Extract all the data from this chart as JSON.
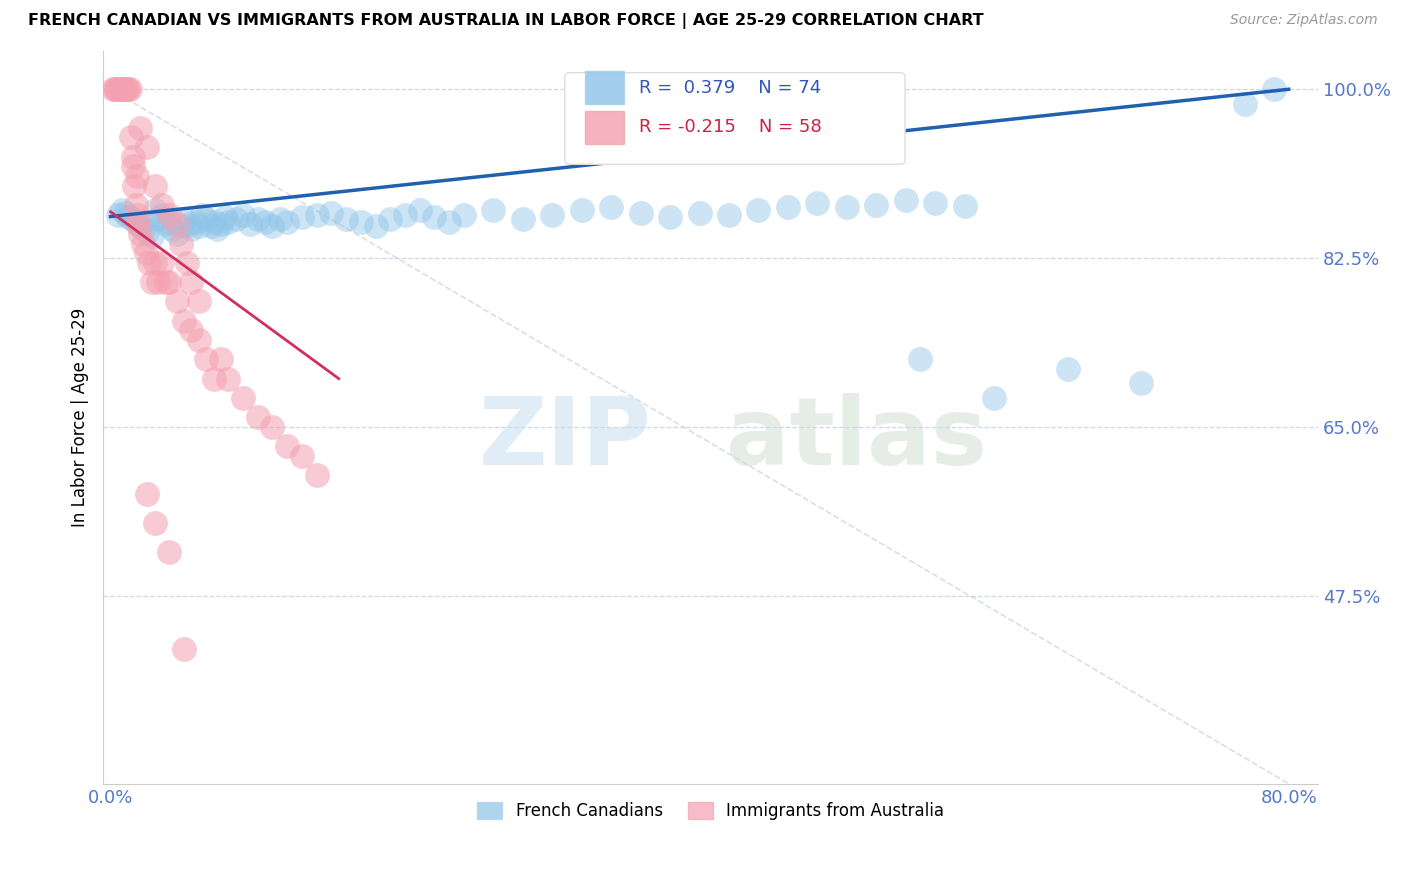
{
  "title": "FRENCH CANADIAN VS IMMIGRANTS FROM AUSTRALIA IN LABOR FORCE | AGE 25-29 CORRELATION CHART",
  "source": "Source: ZipAtlas.com",
  "ylabel": "In Labor Force | Age 25-29",
  "xlim": [
    -0.005,
    0.82
  ],
  "ylim": [
    0.28,
    1.04
  ],
  "xticks": [
    0.0,
    0.1,
    0.2,
    0.3,
    0.4,
    0.5,
    0.6,
    0.7,
    0.8
  ],
  "xticklabels": [
    "0.0%",
    "",
    "",
    "",
    "",
    "",
    "",
    "",
    "80.0%"
  ],
  "yticks": [
    0.475,
    0.65,
    0.825,
    1.0
  ],
  "yticklabels": [
    "47.5%",
    "65.0%",
    "82.5%",
    "100.0%"
  ],
  "R_blue": 0.379,
  "N_blue": 74,
  "R_pink": -0.215,
  "N_pink": 58,
  "blue_color": "#8ec4e8",
  "pink_color": "#f4a0b0",
  "blue_line_color": "#2060b0",
  "pink_line_color": "#d03060",
  "grid_color": "#c8d8e8",
  "diag_color": "#d0d8e0",
  "blue_scatter_x": [
    0.005,
    0.008,
    0.01,
    0.012,
    0.015,
    0.018,
    0.02,
    0.022,
    0.025,
    0.028,
    0.03,
    0.032,
    0.035,
    0.038,
    0.04,
    0.042,
    0.045,
    0.048,
    0.05,
    0.053,
    0.055,
    0.058,
    0.06,
    0.062,
    0.065,
    0.068,
    0.07,
    0.072,
    0.075,
    0.078,
    0.08,
    0.085,
    0.09,
    0.095,
    0.1,
    0.105,
    0.11,
    0.115,
    0.12,
    0.13,
    0.14,
    0.15,
    0.16,
    0.17,
    0.18,
    0.19,
    0.2,
    0.21,
    0.22,
    0.23,
    0.24,
    0.26,
    0.28,
    0.3,
    0.32,
    0.34,
    0.36,
    0.38,
    0.4,
    0.42,
    0.44,
    0.46,
    0.48,
    0.5,
    0.52,
    0.54,
    0.56,
    0.58,
    0.55,
    0.6,
    0.65,
    0.7,
    0.77,
    0.79
  ],
  "blue_scatter_y": [
    0.87,
    0.875,
    0.872,
    0.868,
    0.865,
    0.86,
    0.858,
    0.855,
    0.852,
    0.848,
    0.875,
    0.865,
    0.87,
    0.86,
    0.862,
    0.855,
    0.85,
    0.858,
    0.865,
    0.86,
    0.855,
    0.862,
    0.858,
    0.87,
    0.865,
    0.858,
    0.862,
    0.855,
    0.86,
    0.868,
    0.862,
    0.865,
    0.87,
    0.86,
    0.865,
    0.862,
    0.858,
    0.865,
    0.862,
    0.868,
    0.87,
    0.872,
    0.865,
    0.862,
    0.858,
    0.865,
    0.87,
    0.875,
    0.868,
    0.862,
    0.87,
    0.875,
    0.865,
    0.87,
    0.875,
    0.878,
    0.872,
    0.868,
    0.872,
    0.87,
    0.875,
    0.878,
    0.882,
    0.878,
    0.88,
    0.885,
    0.882,
    0.879,
    0.72,
    0.68,
    0.71,
    0.695,
    0.985,
    1.0
  ],
  "pink_scatter_x": [
    0.002,
    0.003,
    0.004,
    0.005,
    0.006,
    0.007,
    0.008,
    0.009,
    0.01,
    0.011,
    0.012,
    0.013,
    0.014,
    0.015,
    0.016,
    0.017,
    0.018,
    0.019,
    0.02,
    0.022,
    0.024,
    0.026,
    0.028,
    0.03,
    0.032,
    0.035,
    0.038,
    0.04,
    0.045,
    0.05,
    0.055,
    0.06,
    0.065,
    0.07,
    0.075,
    0.08,
    0.09,
    0.1,
    0.11,
    0.12,
    0.13,
    0.14,
    0.02,
    0.025,
    0.015,
    0.018,
    0.03,
    0.035,
    0.04,
    0.045,
    0.048,
    0.052,
    0.055,
    0.06,
    0.025,
    0.03,
    0.04,
    0.05
  ],
  "pink_scatter_y": [
    1.0,
    1.0,
    1.0,
    1.0,
    1.0,
    1.0,
    1.0,
    1.0,
    1.0,
    1.0,
    1.0,
    1.0,
    0.95,
    0.92,
    0.9,
    0.88,
    0.87,
    0.86,
    0.85,
    0.84,
    0.83,
    0.82,
    0.8,
    0.82,
    0.8,
    0.82,
    0.8,
    0.8,
    0.78,
    0.76,
    0.75,
    0.74,
    0.72,
    0.7,
    0.72,
    0.7,
    0.68,
    0.66,
    0.65,
    0.63,
    0.62,
    0.6,
    0.96,
    0.94,
    0.93,
    0.91,
    0.9,
    0.88,
    0.87,
    0.86,
    0.84,
    0.82,
    0.8,
    0.78,
    0.58,
    0.55,
    0.52,
    0.42
  ]
}
